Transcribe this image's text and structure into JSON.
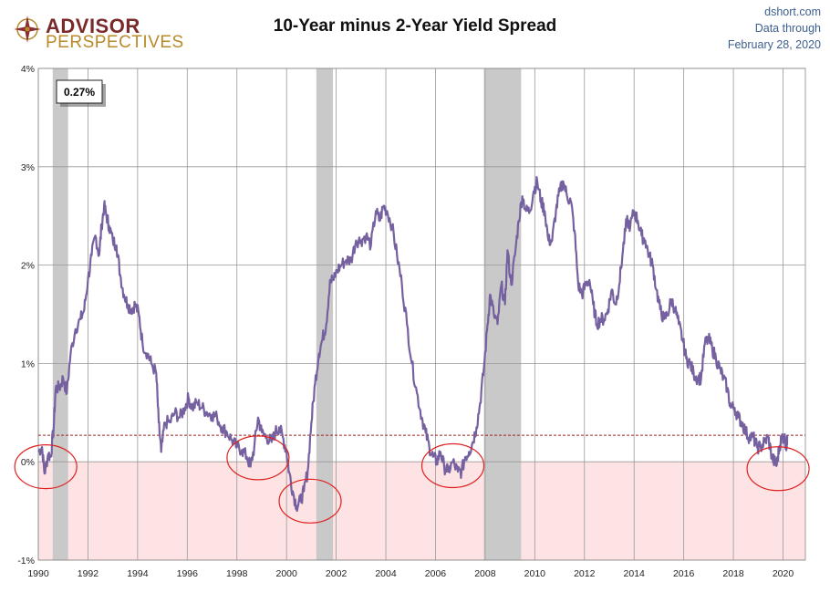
{
  "brand": {
    "line1": "ADVISOR",
    "line2": "PERSPECTIVES"
  },
  "source": {
    "site": "dshort.com",
    "line2": "Data through",
    "date": "February 28, 2020"
  },
  "colors": {
    "line": "#7560a0",
    "recession": "#c9c9c9",
    "negative_zone": "#fde3e3",
    "reference": "#a02020",
    "circle": "#e02020",
    "grid": "#999999"
  },
  "chart_data": {
    "type": "line",
    "title": "10-Year minus 2-Year Yield Spread",
    "ylim": [
      -1,
      4
    ],
    "xlim": [
      1990,
      2020.9
    ],
    "y_ticks": [
      {
        "value": 4,
        "label": "4%"
      },
      {
        "value": 3,
        "label": "3%"
      },
      {
        "value": 2,
        "label": "2%"
      },
      {
        "value": 1,
        "label": "1%"
      },
      {
        "value": 0,
        "label": "0%"
      },
      {
        "value": -1,
        "label": "-1%"
      }
    ],
    "x_ticks": [
      "1990",
      "1992",
      "1994",
      "1996",
      "1998",
      "2000",
      "2002",
      "2004",
      "2006",
      "2008",
      "2010",
      "2012",
      "2014",
      "2016",
      "2018",
      "2020"
    ],
    "grid": true,
    "recessions": [
      [
        1990.58,
        1991.2
      ],
      [
        2001.2,
        2001.87
      ],
      [
        2007.95,
        2009.45
      ]
    ],
    "reference_line": {
      "value": 0.27,
      "style": "dashed"
    },
    "callout": "0.27%",
    "inversion_circles": [
      {
        "x": 1990.3,
        "y": -0.05
      },
      {
        "x": 1998.85,
        "y": 0.04
      },
      {
        "x": 2000.95,
        "y": -0.4
      },
      {
        "x": 2006.7,
        "y": -0.04
      },
      {
        "x": 2019.8,
        "y": -0.07
      }
    ],
    "series": [
      {
        "values": [
          [
            1990.0,
            0.1
          ],
          [
            1990.15,
            0.15
          ],
          [
            1990.25,
            -0.12
          ],
          [
            1990.4,
            0.08
          ],
          [
            1990.5,
            0.05
          ],
          [
            1990.62,
            0.35
          ],
          [
            1990.7,
            0.75
          ],
          [
            1990.85,
            0.75
          ],
          [
            1991.0,
            0.85
          ],
          [
            1991.15,
            0.7
          ],
          [
            1991.3,
            1.1
          ],
          [
            1991.5,
            1.35
          ],
          [
            1991.7,
            1.45
          ],
          [
            1991.85,
            1.55
          ],
          [
            1992.0,
            1.85
          ],
          [
            1992.15,
            2.1
          ],
          [
            1992.3,
            2.3
          ],
          [
            1992.45,
            2.1
          ],
          [
            1992.55,
            2.4
          ],
          [
            1992.65,
            2.6
          ],
          [
            1992.75,
            2.5
          ],
          [
            1992.85,
            2.4
          ],
          [
            1993.0,
            2.25
          ],
          [
            1993.15,
            2.2
          ],
          [
            1993.3,
            1.9
          ],
          [
            1993.45,
            1.7
          ],
          [
            1993.6,
            1.6
          ],
          [
            1993.75,
            1.55
          ],
          [
            1993.9,
            1.6
          ],
          [
            1994.05,
            1.5
          ],
          [
            1994.2,
            1.2
          ],
          [
            1994.4,
            1.1
          ],
          [
            1994.55,
            1.0
          ],
          [
            1994.75,
            0.9
          ],
          [
            1994.85,
            0.4
          ],
          [
            1994.95,
            0.1
          ],
          [
            1995.1,
            0.4
          ],
          [
            1995.3,
            0.4
          ],
          [
            1995.5,
            0.5
          ],
          [
            1995.7,
            0.45
          ],
          [
            1995.9,
            0.55
          ],
          [
            1996.05,
            0.65
          ],
          [
            1996.2,
            0.55
          ],
          [
            1996.4,
            0.6
          ],
          [
            1996.6,
            0.55
          ],
          [
            1996.8,
            0.5
          ],
          [
            1997.0,
            0.48
          ],
          [
            1997.2,
            0.45
          ],
          [
            1997.4,
            0.35
          ],
          [
            1997.6,
            0.3
          ],
          [
            1997.8,
            0.22
          ],
          [
            1998.0,
            0.15
          ],
          [
            1998.2,
            0.12
          ],
          [
            1998.4,
            0.05
          ],
          [
            1998.55,
            -0.05
          ],
          [
            1998.7,
            0.15
          ],
          [
            1998.85,
            0.45
          ],
          [
            1999.0,
            0.3
          ],
          [
            1999.2,
            0.25
          ],
          [
            1999.4,
            0.2
          ],
          [
            1999.55,
            0.3
          ],
          [
            1999.7,
            0.35
          ],
          [
            1999.85,
            0.25
          ],
          [
            2000.0,
            0.1
          ],
          [
            2000.1,
            -0.1
          ],
          [
            2000.25,
            -0.3
          ],
          [
            2000.4,
            -0.45
          ],
          [
            2000.55,
            -0.4
          ],
          [
            2000.7,
            -0.3
          ],
          [
            2000.85,
            -0.1
          ],
          [
            2001.0,
            0.4
          ],
          [
            2001.15,
            0.8
          ],
          [
            2001.3,
            1.1
          ],
          [
            2001.45,
            1.25
          ],
          [
            2001.6,
            1.4
          ],
          [
            2001.75,
            1.85
          ],
          [
            2001.9,
            1.85
          ],
          [
            2002.05,
            1.95
          ],
          [
            2002.2,
            2.0
          ],
          [
            2002.4,
            2.05
          ],
          [
            2002.6,
            2.05
          ],
          [
            2002.8,
            2.25
          ],
          [
            2003.0,
            2.25
          ],
          [
            2003.2,
            2.3
          ],
          [
            2003.4,
            2.2
          ],
          [
            2003.6,
            2.55
          ],
          [
            2003.75,
            2.45
          ],
          [
            2003.9,
            2.6
          ],
          [
            2004.05,
            2.55
          ],
          [
            2004.25,
            2.4
          ],
          [
            2004.45,
            2.1
          ],
          [
            2004.65,
            1.8
          ],
          [
            2004.85,
            1.4
          ],
          [
            2005.05,
            1.0
          ],
          [
            2005.25,
            0.7
          ],
          [
            2005.45,
            0.45
          ],
          [
            2005.6,
            0.3
          ],
          [
            2005.75,
            0.15
          ],
          [
            2005.9,
            0.05
          ],
          [
            2006.05,
            0.0
          ],
          [
            2006.2,
            0.1
          ],
          [
            2006.35,
            -0.05
          ],
          [
            2006.5,
            -0.1
          ],
          [
            2006.7,
            0.0
          ],
          [
            2006.9,
            -0.1
          ],
          [
            2007.05,
            -0.1
          ],
          [
            2007.2,
            0.05
          ],
          [
            2007.35,
            0.1
          ],
          [
            2007.5,
            0.2
          ],
          [
            2007.65,
            0.35
          ],
          [
            2007.8,
            0.6
          ],
          [
            2007.95,
            0.95
          ],
          [
            2008.1,
            1.4
          ],
          [
            2008.2,
            1.7
          ],
          [
            2008.35,
            1.5
          ],
          [
            2008.5,
            1.4
          ],
          [
            2008.65,
            1.8
          ],
          [
            2008.8,
            1.6
          ],
          [
            2008.9,
            2.15
          ],
          [
            2009.05,
            1.8
          ],
          [
            2009.2,
            2.1
          ],
          [
            2009.35,
            2.45
          ],
          [
            2009.5,
            2.7
          ],
          [
            2009.65,
            2.55
          ],
          [
            2009.8,
            2.55
          ],
          [
            2009.95,
            2.75
          ],
          [
            2010.1,
            2.85
          ],
          [
            2010.25,
            2.65
          ],
          [
            2010.4,
            2.55
          ],
          [
            2010.55,
            2.25
          ],
          [
            2010.7,
            2.25
          ],
          [
            2010.85,
            2.55
          ],
          [
            2011.0,
            2.75
          ],
          [
            2011.15,
            2.85
          ],
          [
            2011.3,
            2.7
          ],
          [
            2011.45,
            2.65
          ],
          [
            2011.6,
            2.35
          ],
          [
            2011.75,
            1.8
          ],
          [
            2011.9,
            1.7
          ],
          [
            2012.05,
            1.8
          ],
          [
            2012.2,
            1.85
          ],
          [
            2012.35,
            1.6
          ],
          [
            2012.5,
            1.4
          ],
          [
            2012.65,
            1.45
          ],
          [
            2012.8,
            1.45
          ],
          [
            2012.95,
            1.55
          ],
          [
            2013.1,
            1.75
          ],
          [
            2013.25,
            1.6
          ],
          [
            2013.4,
            1.8
          ],
          [
            2013.55,
            2.15
          ],
          [
            2013.7,
            2.45
          ],
          [
            2013.85,
            2.4
          ],
          [
            2014.0,
            2.55
          ],
          [
            2014.15,
            2.45
          ],
          [
            2014.3,
            2.3
          ],
          [
            2014.45,
            2.25
          ],
          [
            2014.6,
            2.1
          ],
          [
            2014.75,
            2.0
          ],
          [
            2014.9,
            1.75
          ],
          [
            2015.05,
            1.55
          ],
          [
            2015.2,
            1.45
          ],
          [
            2015.35,
            1.5
          ],
          [
            2015.5,
            1.65
          ],
          [
            2015.65,
            1.55
          ],
          [
            2015.8,
            1.4
          ],
          [
            2015.95,
            1.25
          ],
          [
            2016.1,
            1.05
          ],
          [
            2016.25,
            1.0
          ],
          [
            2016.4,
            0.9
          ],
          [
            2016.55,
            0.85
          ],
          [
            2016.7,
            0.85
          ],
          [
            2016.85,
            1.2
          ],
          [
            2017.0,
            1.25
          ],
          [
            2017.15,
            1.15
          ],
          [
            2017.3,
            1.05
          ],
          [
            2017.45,
            0.95
          ],
          [
            2017.6,
            0.85
          ],
          [
            2017.75,
            0.75
          ],
          [
            2017.9,
            0.55
          ],
          [
            2018.05,
            0.55
          ],
          [
            2018.2,
            0.45
          ],
          [
            2018.35,
            0.4
          ],
          [
            2018.5,
            0.3
          ],
          [
            2018.65,
            0.25
          ],
          [
            2018.8,
            0.25
          ],
          [
            2018.95,
            0.15
          ],
          [
            2019.1,
            0.15
          ],
          [
            2019.25,
            0.2
          ],
          [
            2019.4,
            0.25
          ],
          [
            2019.55,
            0.05
          ],
          [
            2019.65,
            0.0
          ],
          [
            2019.75,
            -0.03
          ],
          [
            2019.85,
            0.15
          ],
          [
            2019.95,
            0.25
          ],
          [
            2020.05,
            0.25
          ],
          [
            2020.15,
            0.15
          ],
          [
            2020.17,
            0.27
          ]
        ]
      }
    ]
  }
}
